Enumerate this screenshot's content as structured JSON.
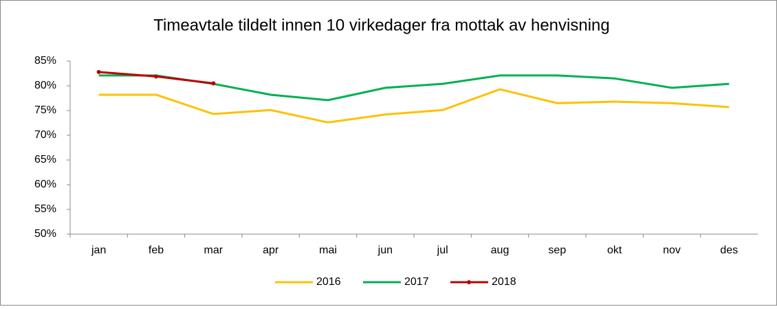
{
  "chart_data": {
    "type": "line",
    "title": "Timeavtale tildelt innen 10 virkedager fra mottak av henvisning",
    "categories": [
      "jan",
      "feb",
      "mar",
      "apr",
      "mai",
      "jun",
      "jul",
      "aug",
      "sep",
      "okt",
      "nov",
      "des"
    ],
    "series": [
      {
        "name": "2016",
        "color": "#ffc000",
        "values": [
          78.2,
          78.2,
          74.3,
          75.1,
          72.6,
          74.2,
          75.1,
          79.3,
          76.5,
          76.8,
          76.5,
          75.7
        ]
      },
      {
        "name": "2017",
        "color": "#00b050",
        "values": [
          82.1,
          82.1,
          80.4,
          78.2,
          77.1,
          79.6,
          80.4,
          82.1,
          82.1,
          81.5,
          79.6,
          80.4
        ]
      },
      {
        "name": "2018",
        "color": "#c00000",
        "values": [
          82.8,
          81.9,
          80.5,
          null,
          null,
          null,
          null,
          null,
          null,
          null,
          null,
          null
        ]
      }
    ],
    "ylim": [
      50,
      85
    ],
    "yticks": [
      {
        "value": 50,
        "label": "50%"
      },
      {
        "value": 55,
        "label": "55%"
      },
      {
        "value": 60,
        "label": "60%"
      },
      {
        "value": 65,
        "label": "65%"
      },
      {
        "value": 70,
        "label": "70%"
      },
      {
        "value": 75,
        "label": "75%"
      },
      {
        "value": 80,
        "label": "80%"
      },
      {
        "value": 85,
        "label": "85%"
      }
    ],
    "grid": false,
    "legend": "bottom"
  }
}
